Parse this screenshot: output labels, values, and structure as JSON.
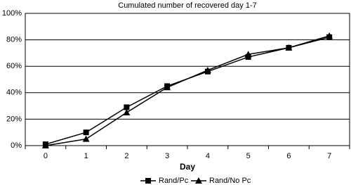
{
  "chart_data": {
    "type": "line",
    "title": "Cumulated number of recovered day 1-7",
    "x_label": "Day",
    "categories": [
      0,
      1,
      2,
      3,
      4,
      5,
      6,
      7
    ],
    "series": [
      {
        "name": "Rand/Pc",
        "color": "#000000",
        "marker": "square",
        "values": [
          1,
          10,
          29,
          45,
          56,
          67,
          74,
          82
        ]
      },
      {
        "name": "Rand/No Pc",
        "color": "#000000",
        "marker": "triangle",
        "values": [
          0,
          5,
          25,
          44,
          57,
          69,
          74,
          83
        ]
      }
    ],
    "ylim": [
      0,
      100
    ],
    "yticks": [
      {
        "value": 0,
        "label": "0%"
      },
      {
        "value": 20,
        "label": "20%"
      },
      {
        "value": 40,
        "label": "40%"
      },
      {
        "value": 60,
        "label": "60%"
      },
      {
        "value": 80,
        "label": "80%"
      },
      {
        "value": 100,
        "label": "100%"
      }
    ],
    "grid": true,
    "legend": "bottom"
  }
}
